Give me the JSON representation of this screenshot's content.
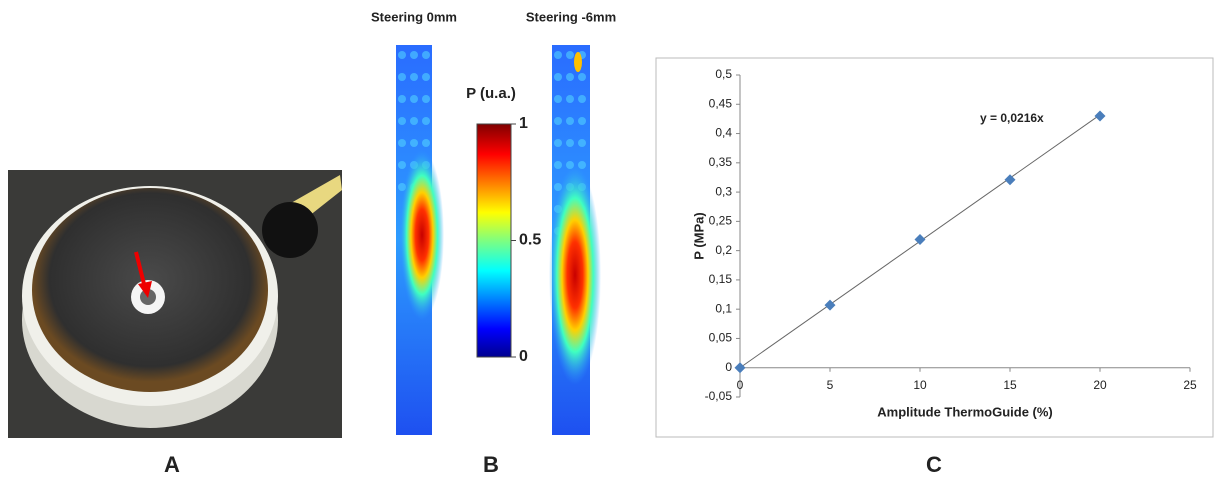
{
  "panels": {
    "a": {
      "label": "A"
    },
    "b": {
      "label": "B",
      "maps": [
        {
          "title": "Steering 0mm"
        },
        {
          "title": "Steering -6mm"
        }
      ],
      "colorbar": {
        "title": "P (u.a.)",
        "lim": [
          0,
          1
        ],
        "ticks": [
          0,
          0.5,
          1
        ]
      }
    },
    "c": {
      "label": "C"
    }
  },
  "chart_data": {
    "type": "scatter",
    "x_label": "Amplitude ThermoGuide (%)",
    "y_label": "P (MPa)",
    "x": [
      0,
      5,
      10,
      15,
      20
    ],
    "series": [
      {
        "color": "#4a7ebb",
        "values": [
          0,
          0.107,
          0.219,
          0.321,
          0.43
        ]
      }
    ],
    "trendline": {
      "slope": 0.0216,
      "label": "y = 0,0216x"
    },
    "xlim": [
      0,
      25
    ],
    "xticks": [
      0,
      5,
      10,
      15,
      20,
      25
    ],
    "ylim": [
      -0.05,
      0.5
    ],
    "yticks": [
      {
        "value": -0.05,
        "label": "-0,05"
      },
      0,
      {
        "value": 0.05,
        "label": "0,05"
      },
      {
        "value": 0.1,
        "label": "0,1"
      },
      {
        "value": 0.15,
        "label": "0,15"
      },
      {
        "value": 0.2,
        "label": "0,2"
      },
      {
        "value": 0.25,
        "label": "0,25"
      },
      {
        "value": 0.3,
        "label": "0,3"
      },
      {
        "value": 0.35,
        "label": "0,35"
      },
      {
        "value": 0.4,
        "label": "0,4"
      },
      {
        "value": 0.45,
        "label": "0,45"
      },
      {
        "value": 0.5,
        "label": "0,5"
      }
    ],
    "grid": false
  }
}
